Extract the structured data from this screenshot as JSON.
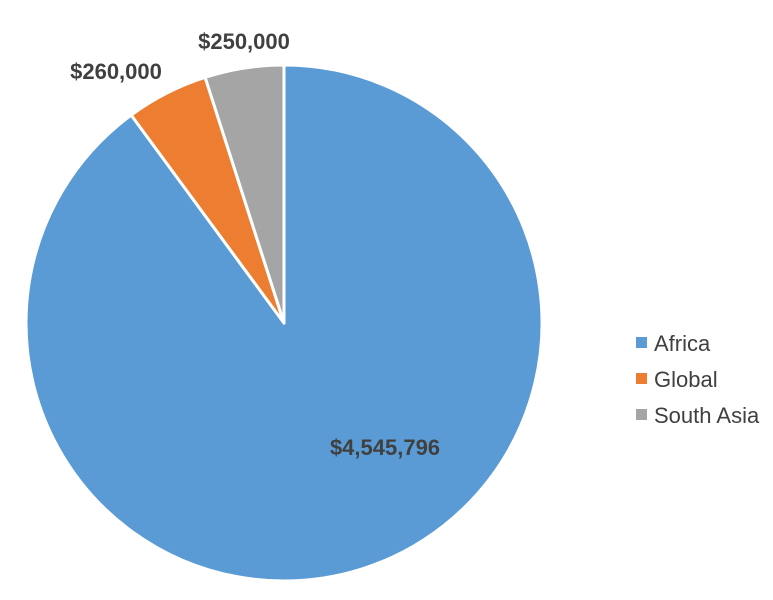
{
  "chart_data": {
    "type": "pie",
    "title": "",
    "series": [
      {
        "values": [
          4545796,
          260000,
          250000
        ]
      }
    ],
    "categories": [
      "Africa",
      "Global",
      "South Asia"
    ],
    "values": [
      4545796,
      260000,
      250000
    ],
    "data_labels": [
      "$4,545,796",
      "$260,000",
      "$250,000"
    ],
    "colors": [
      "#5B9BD5",
      "#ED7D31",
      "#A5A5A5"
    ],
    "start_angle_deg": 0,
    "direction": "clockwise",
    "legend": {
      "position": "right",
      "items": [
        {
          "label": "Africa",
          "color": "#5B9BD5"
        },
        {
          "label": "Global",
          "color": "#ED7D31"
        },
        {
          "label": "South Asia",
          "color": "#A5A5A5"
        }
      ]
    }
  }
}
